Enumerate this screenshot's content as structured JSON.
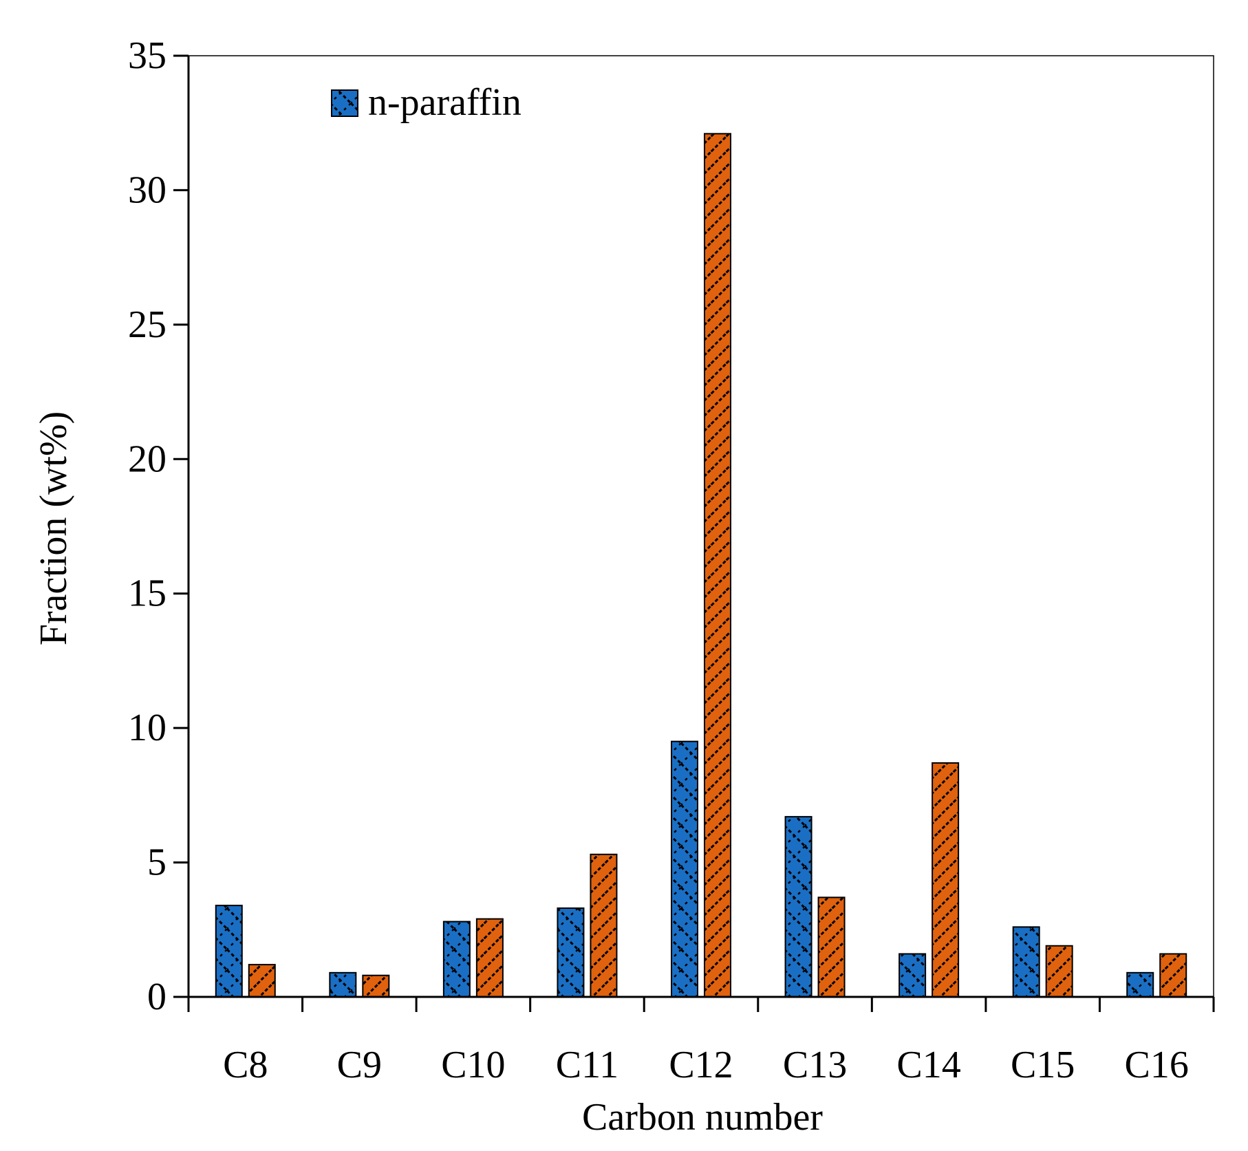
{
  "chart_data": {
    "type": "bar",
    "title": "",
    "xlabel": "Carbon number",
    "ylabel": "Fraction (wt%)",
    "ylim": [
      0,
      35
    ],
    "yticks": [
      0,
      5,
      10,
      15,
      20,
      25,
      30,
      35
    ],
    "categories": [
      "C8",
      "C9",
      "C10",
      "C11",
      "C12",
      "C13",
      "C14",
      "C15",
      "C16"
    ],
    "series": [
      {
        "name": "n-paraffin",
        "color": "#1a6fc4",
        "values": [
          3.4,
          0.9,
          2.8,
          3.3,
          9.5,
          6.7,
          1.6,
          2.6,
          0.9
        ]
      },
      {
        "name": "",
        "color": "#e0620e",
        "values": [
          1.2,
          0.8,
          2.9,
          5.3,
          32.1,
          3.7,
          8.7,
          1.9,
          1.6
        ]
      }
    ],
    "legend": {
      "position": "top-left",
      "entries": [
        "n-paraffin"
      ]
    },
    "grid": false
  }
}
